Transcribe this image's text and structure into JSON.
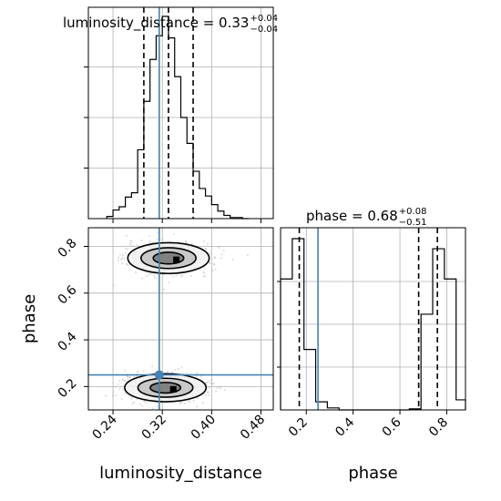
{
  "chart_data": {
    "type": "corner",
    "parameters": [
      "luminosity_distance",
      "phase"
    ],
    "truth": {
      "luminosity_distance": 0.315,
      "phase": 0.25
    },
    "marginals": [
      {
        "parameter": "luminosity_distance",
        "title": {
          "main": "luminosity_distance = 0.33",
          "upper": "+0.04",
          "lower": "−0.04"
        },
        "quantiles": [
          0.29,
          0.33,
          0.37
        ],
        "xlim": [
          0.2,
          0.5
        ],
        "histogram": {
          "edges": [
            0.23,
            0.24,
            0.25,
            0.26,
            0.27,
            0.28,
            0.29,
            0.3,
            0.31,
            0.32,
            0.33,
            0.34,
            0.35,
            0.36,
            0.37,
            0.38,
            0.39,
            0.4,
            0.41,
            0.42,
            0.43,
            0.44,
            0.45,
            0.46
          ],
          "counts": [
            2,
            8,
            11,
            20,
            24,
            64,
            109,
            148,
            170,
            188,
            168,
            132,
            94,
            70,
            44,
            28,
            21,
            13,
            7,
            3,
            1,
            1,
            0
          ]
        }
      },
      {
        "parameter": "phase",
        "title": {
          "main": "phase = 0.68",
          "upper": "+0.08",
          "lower": "−0.51"
        },
        "quantiles": [
          0.17,
          0.68,
          0.76
        ],
        "xlim": [
          0.09,
          0.88
        ],
        "histogram": {
          "edges": [
            0.09,
            0.14,
            0.19,
            0.24,
            0.29,
            0.34,
            0.39,
            0.44,
            0.49,
            0.54,
            0.59,
            0.64,
            0.69,
            0.74,
            0.79,
            0.84,
            0.88
          ],
          "counts": [
            130,
            170,
            60,
            8,
            2,
            0,
            0,
            0,
            0,
            0,
            0,
            1,
            95,
            160,
            130,
            10
          ]
        }
      }
    ],
    "joint": {
      "x": "luminosity_distance",
      "y": "phase",
      "xlim": [
        0.2,
        0.5
      ],
      "ylim": [
        0.1,
        0.88
      ],
      "modes": [
        {
          "x": 0.33,
          "y": 0.75,
          "sx": 0.033,
          "sy": 0.033
        },
        {
          "x": 0.325,
          "y": 0.195,
          "sx": 0.033,
          "sy": 0.03
        }
      ]
    },
    "axes": {
      "x_ticks_lum": [
        "0.24",
        "0.32",
        "0.40",
        "0.48"
      ],
      "x_ticks_phase": [
        "0.2",
        "0.4",
        "0.6",
        "0.8"
      ],
      "y_ticks_phase": [
        "0.2",
        "0.4",
        "0.6",
        "0.8"
      ],
      "xlabel_lum": "luminosity_distance",
      "xlabel_phase": "phase",
      "ylabel_phase": "phase"
    },
    "grid": true,
    "colors": {
      "truth": "#4682b4",
      "hist": "#000000",
      "scatter": "#999999"
    }
  }
}
